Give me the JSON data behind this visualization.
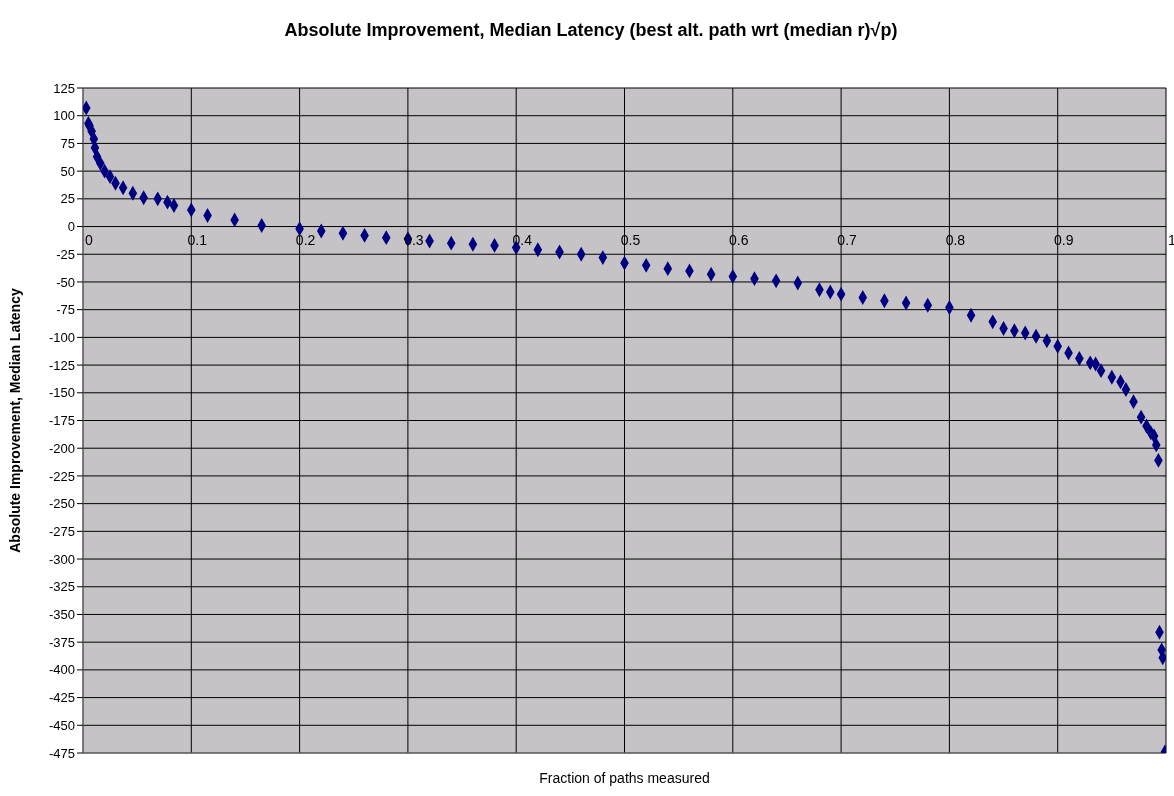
{
  "chart_data": {
    "type": "scatter",
    "title": "Absolute Improvement, Median Latency (best alt. path wrt (median r)√p)",
    "xlabel": "Fraction of paths measured",
    "ylabel": "Absolute Improvement, Median Latency",
    "xlim": [
      0,
      1
    ],
    "xticks": [
      0,
      0.1,
      0.2,
      0.3,
      0.4,
      0.5,
      0.6,
      0.7,
      0.8,
      0.9,
      1
    ],
    "ylim": [
      -475,
      125
    ],
    "yticks": [
      -475,
      -450,
      -425,
      -400,
      -375,
      -350,
      -325,
      -300,
      -275,
      -250,
      -225,
      -200,
      -175,
      -150,
      -125,
      -100,
      -75,
      -50,
      -25,
      0,
      25,
      50,
      75,
      100,
      125
    ],
    "grid": true,
    "marker": "diamond",
    "series": [
      {
        "color": "#000080",
        "x": [
          0.003,
          0.005,
          0.006,
          0.008,
          0.01,
          0.011,
          0.013,
          0.016,
          0.02,
          0.025,
          0.03,
          0.037,
          0.046,
          0.056,
          0.069,
          0.078,
          0.084,
          0.1,
          0.115,
          0.14,
          0.165,
          0.2,
          0.22,
          0.24,
          0.26,
          0.28,
          0.3,
          0.32,
          0.34,
          0.36,
          0.38,
          0.4,
          0.42,
          0.44,
          0.46,
          0.48,
          0.5,
          0.52,
          0.54,
          0.56,
          0.58,
          0.6,
          0.62,
          0.64,
          0.66,
          0.68,
          0.69,
          0.7,
          0.72,
          0.74,
          0.76,
          0.78,
          0.8,
          0.82,
          0.84,
          0.85,
          0.86,
          0.87,
          0.88,
          0.89,
          0.9,
          0.91,
          0.92,
          0.93,
          0.935,
          0.94,
          0.95,
          0.958,
          0.963,
          0.97,
          0.977,
          0.982,
          0.986,
          0.989,
          0.991,
          0.993,
          0.994,
          0.996,
          0.997,
          0.999
        ],
        "values": [
          107,
          93,
          91,
          86,
          79,
          71,
          63,
          57,
          50,
          45,
          39,
          35,
          30,
          26,
          25,
          22,
          19,
          15,
          10,
          6,
          1,
          -2,
          -4,
          -6,
          -8,
          -10,
          -11,
          -13,
          -15,
          -16,
          -17,
          -19,
          -21,
          -23,
          -25,
          -28,
          -33,
          -35,
          -38,
          -40,
          -43,
          -45,
          -47,
          -49,
          -51,
          -57,
          -59,
          -61,
          -64,
          -67,
          -69,
          -71,
          -73,
          -80,
          -86,
          -92,
          -94,
          -96,
          -99,
          -103,
          -108,
          -114,
          -119,
          -123,
          -124,
          -130,
          -136,
          -140,
          -147,
          -158,
          -172,
          -180,
          -186,
          -189,
          -197,
          -211,
          -366,
          -382,
          -389,
          -474
        ]
      }
    ]
  }
}
